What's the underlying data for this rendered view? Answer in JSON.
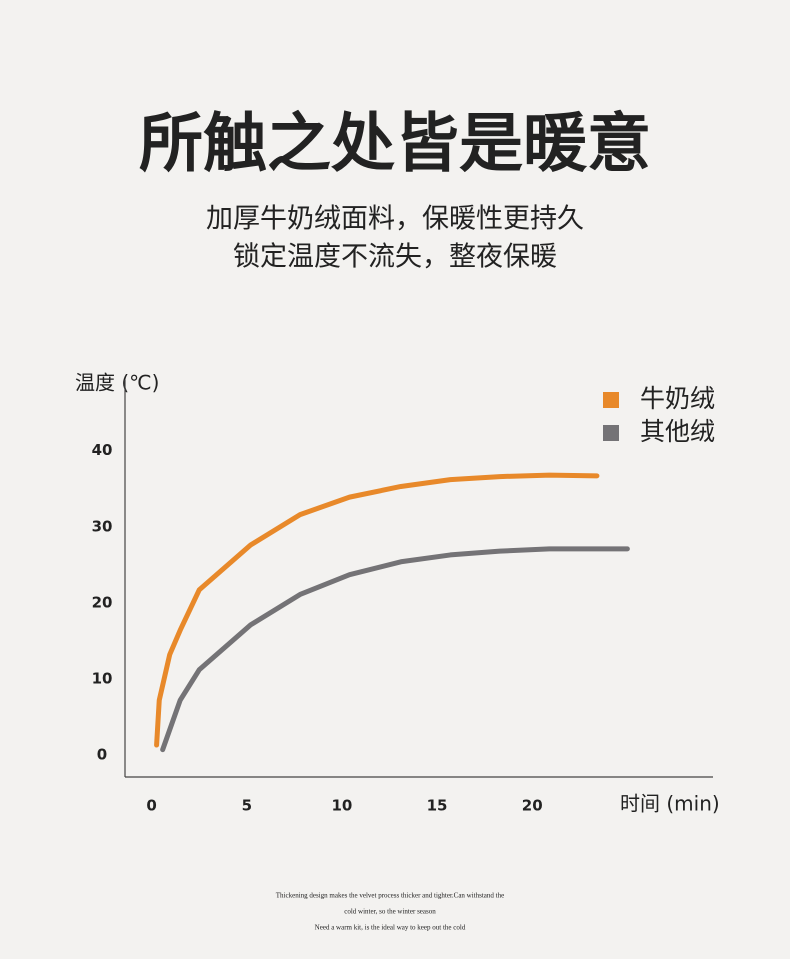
{
  "header": {
    "title": "所触之处皆是暖意",
    "subtitle": [
      "加厚牛奶绒面料，保暖性更持久",
      "锁定温度不流失，整夜保暖"
    ]
  },
  "chart_data": {
    "type": "line",
    "y_label": "温度 (℃)",
    "x_label": "时间 (min)",
    "xlim": [
      -1.4,
      29.5
    ],
    "ylim": [
      -2.9,
      49.3
    ],
    "xticks": [
      0,
      5,
      10,
      15,
      20
    ],
    "yticks": [
      0,
      10,
      20,
      30,
      40
    ],
    "legend": "top-right",
    "series": [
      {
        "name": "牛奶绒",
        "color": "#e8892a",
        "x": [
          0.26,
          0.4,
          0.95,
          1.5,
          2.5,
          5.2,
          7.8,
          10.4,
          13.1,
          15.7,
          18.3,
          20.9,
          23.4
        ],
        "values": [
          1.3,
          7.2,
          13.2,
          16.4,
          21.7,
          27.6,
          31.6,
          33.9,
          35.3,
          36.2,
          36.6,
          36.8,
          36.7
        ]
      },
      {
        "name": "其他绒",
        "color": "#747376",
        "x": [
          0.58,
          1.5,
          2.5,
          5.2,
          7.8,
          10.4,
          13.1,
          15.7,
          18.3,
          20.9,
          25
        ],
        "values": [
          0.7,
          7.2,
          11.2,
          17.1,
          21.1,
          23.7,
          25.4,
          26.3,
          26.8,
          27.1,
          27.1
        ]
      }
    ]
  },
  "footer": [
    "Thickening design makes the velvet process thicker and tighter.Can withstand the",
    "cold winter, so the winter season",
    "Need a warm kit, is the ideal way to keep out the cold"
  ]
}
